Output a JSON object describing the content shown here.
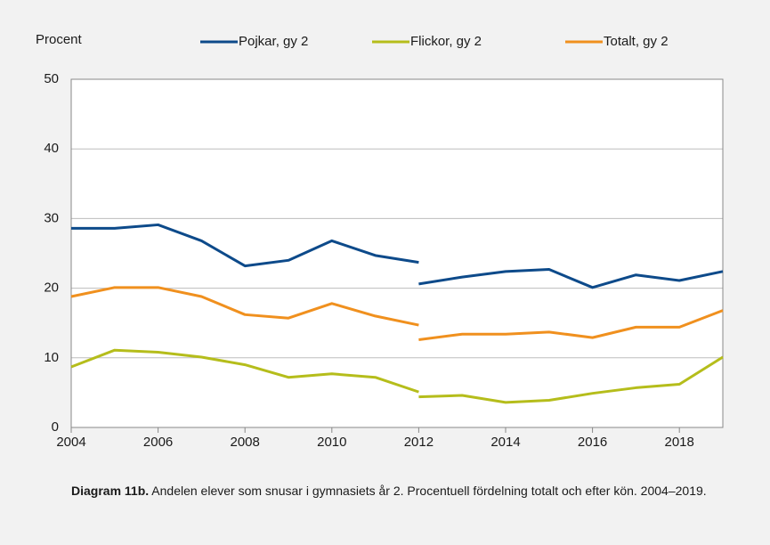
{
  "chart_data": {
    "type": "line",
    "y_label": "Procent",
    "x": [
      2004,
      2005,
      2006,
      2007,
      2008,
      2009,
      2010,
      2011,
      2012,
      null,
      2012,
      2013,
      2014,
      2015,
      2016,
      2017,
      2018,
      2019
    ],
    "series": [
      {
        "name": "Pojkar, gy 2",
        "color": "#0d4a8a",
        "values": [
          28.6,
          28.6,
          29.1,
          26.8,
          23.2,
          24.0,
          26.8,
          24.7,
          23.7,
          null,
          20.6,
          21.6,
          22.4,
          22.7,
          20.1,
          21.9,
          21.1,
          22.4
        ]
      },
      {
        "name": "Flickor, gy 2",
        "color": "#b5bd1b",
        "values": [
          8.7,
          11.1,
          10.8,
          10.1,
          9.0,
          7.2,
          7.7,
          7.2,
          5.1,
          null,
          4.4,
          4.6,
          3.6,
          3.9,
          4.9,
          5.7,
          6.2,
          10.1
        ]
      },
      {
        "name": "Totalt, gy 2",
        "color": "#f0901e",
        "values": [
          18.8,
          20.1,
          20.1,
          18.8,
          16.2,
          15.7,
          17.8,
          16.0,
          14.7,
          null,
          12.6,
          13.4,
          13.4,
          13.7,
          12.9,
          14.4,
          14.4,
          16.8
        ]
      }
    ],
    "xlim": [
      2004,
      2019
    ],
    "xticks": [
      2004,
      2006,
      2008,
      2010,
      2012,
      2014,
      2016,
      2018
    ],
    "ylim": [
      0,
      50
    ],
    "yticks": [
      0,
      10,
      20,
      30,
      40,
      50
    ],
    "grid": true,
    "caption_label": "Diagram 11b.",
    "caption_text": "Andelen elever som snusar i gymnasiets år 2. Procentuell fördelning totalt och efter kön. 2004–2019."
  }
}
